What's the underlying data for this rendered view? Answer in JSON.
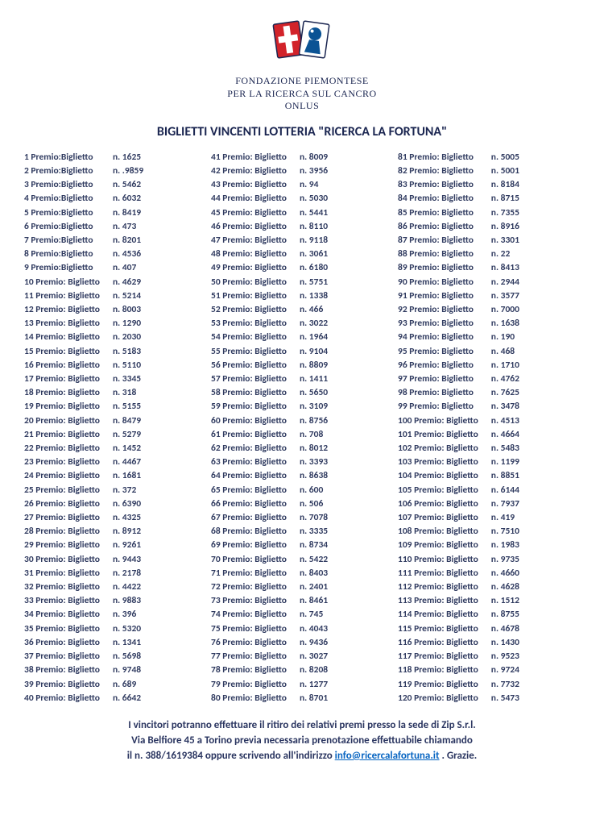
{
  "org": {
    "line1": "FONDAZIONE PIEMONTESE",
    "line2": "PER LA RICERCA SUL CANCRO",
    "line3": "ONLUS"
  },
  "title": "BIGLIETTI VINCENTI LOTTERIA \"RICERCA LA FORTUNA\"",
  "label_word_1": "Premio:",
  "label_word_2": "Biglietto",
  "num_prefix": "n.",
  "colors": {
    "text": "#303b60",
    "org_text": "#1a2550",
    "link": "#0563c1",
    "logo_red": "#d2232a",
    "logo_blue": "#0b5394",
    "logo_white": "#ffffff"
  },
  "footer": {
    "line1": "I vincitori potranno effettuare il ritiro dei relativi premi presso la sede di Zip S.r.l.",
    "line2": "Via Belfiore 45 a Torino previa necessaria prenotazione effettuabile chiamando",
    "line3_a": "il n. 388/1619384 oppure scrivendo all'indirizzo ",
    "line3_link": "info@ricercalafortuna.it",
    "line3_b": " .   Grazie."
  },
  "prizes": [
    {
      "p": 1,
      "n": "1625"
    },
    {
      "p": 2,
      "n": ".9859"
    },
    {
      "p": 3,
      "n": "5462"
    },
    {
      "p": 4,
      "n": "6032"
    },
    {
      "p": 5,
      "n": "8419"
    },
    {
      "p": 6,
      "n": "473"
    },
    {
      "p": 7,
      "n": "8201"
    },
    {
      "p": 8,
      "n": "4536"
    },
    {
      "p": 9,
      "n": "407"
    },
    {
      "p": 10,
      "n": "4629"
    },
    {
      "p": 11,
      "n": "5214"
    },
    {
      "p": 12,
      "n": "8003"
    },
    {
      "p": 13,
      "n": "1290"
    },
    {
      "p": 14,
      "n": "2030"
    },
    {
      "p": 15,
      "n": "5183"
    },
    {
      "p": 16,
      "n": "5110"
    },
    {
      "p": 17,
      "n": "3345"
    },
    {
      "p": 18,
      "n": "318"
    },
    {
      "p": 19,
      "n": "5155"
    },
    {
      "p": 20,
      "n": "8479"
    },
    {
      "p": 21,
      "n": "5279"
    },
    {
      "p": 22,
      "n": "1452"
    },
    {
      "p": 23,
      "n": "4467"
    },
    {
      "p": 24,
      "n": "1681"
    },
    {
      "p": 25,
      "n": "372"
    },
    {
      "p": 26,
      "n": "6390"
    },
    {
      "p": 27,
      "n": "4325"
    },
    {
      "p": 28,
      "n": "8912"
    },
    {
      "p": 29,
      "n": "9261"
    },
    {
      "p": 30,
      "n": "9443"
    },
    {
      "p": 31,
      "n": "2178"
    },
    {
      "p": 32,
      "n": "4422"
    },
    {
      "p": 33,
      "n": "9883"
    },
    {
      "p": 34,
      "n": "396"
    },
    {
      "p": 35,
      "n": "5320"
    },
    {
      "p": 36,
      "n": "1341"
    },
    {
      "p": 37,
      "n": "5698"
    },
    {
      "p": 38,
      "n": "9748"
    },
    {
      "p": 39,
      "n": "689"
    },
    {
      "p": 40,
      "n": "6642"
    },
    {
      "p": 41,
      "n": "8009"
    },
    {
      "p": 42,
      "n": "3956"
    },
    {
      "p": 43,
      "n": "94"
    },
    {
      "p": 44,
      "n": "5030"
    },
    {
      "p": 45,
      "n": "5441"
    },
    {
      "p": 46,
      "n": "8110"
    },
    {
      "p": 47,
      "n": "9118"
    },
    {
      "p": 48,
      "n": "3061"
    },
    {
      "p": 49,
      "n": "6180"
    },
    {
      "p": 50,
      "n": "5751"
    },
    {
      "p": 51,
      "n": "1338"
    },
    {
      "p": 52,
      "n": "466"
    },
    {
      "p": 53,
      "n": "3022"
    },
    {
      "p": 54,
      "n": "1964"
    },
    {
      "p": 55,
      "n": "9104"
    },
    {
      "p": 56,
      "n": "8809"
    },
    {
      "p": 57,
      "n": "1411"
    },
    {
      "p": 58,
      "n": "5650"
    },
    {
      "p": 59,
      "n": "3109"
    },
    {
      "p": 60,
      "n": "8756"
    },
    {
      "p": 61,
      "n": "708"
    },
    {
      "p": 62,
      "n": "8012"
    },
    {
      "p": 63,
      "n": "3393"
    },
    {
      "p": 64,
      "n": "8638"
    },
    {
      "p": 65,
      "n": "600"
    },
    {
      "p": 66,
      "n": "506"
    },
    {
      "p": 67,
      "n": "7078"
    },
    {
      "p": 68,
      "n": "3335"
    },
    {
      "p": 69,
      "n": "8734"
    },
    {
      "p": 70,
      "n": "5422"
    },
    {
      "p": 71,
      "n": "8403"
    },
    {
      "p": 72,
      "n": "2401"
    },
    {
      "p": 73,
      "n": "8461"
    },
    {
      "p": 74,
      "n": "745"
    },
    {
      "p": 75,
      "n": "4043"
    },
    {
      "p": 76,
      "n": "9436"
    },
    {
      "p": 77,
      "n": "3027"
    },
    {
      "p": 78,
      "n": "8208"
    },
    {
      "p": 79,
      "n": "1277"
    },
    {
      "p": 80,
      "n": "8701"
    },
    {
      "p": 81,
      "n": "5005"
    },
    {
      "p": 82,
      "n": "5001"
    },
    {
      "p": 83,
      "n": "8184"
    },
    {
      "p": 84,
      "n": "8715"
    },
    {
      "p": 85,
      "n": "7355"
    },
    {
      "p": 86,
      "n": "8916"
    },
    {
      "p": 87,
      "n": "3301"
    },
    {
      "p": 88,
      "n": "22"
    },
    {
      "p": 89,
      "n": "8413"
    },
    {
      "p": 90,
      "n": "2944"
    },
    {
      "p": 91,
      "n": "3577"
    },
    {
      "p": 92,
      "n": "7000"
    },
    {
      "p": 93,
      "n": "1638"
    },
    {
      "p": 94,
      "n": "190"
    },
    {
      "p": 95,
      "n": "468"
    },
    {
      "p": 96,
      "n": "1710"
    },
    {
      "p": 97,
      "n": "4762"
    },
    {
      "p": 98,
      "n": "7625"
    },
    {
      "p": 99,
      "n": "3478"
    },
    {
      "p": 100,
      "n": "4513"
    },
    {
      "p": 101,
      "n": "4664"
    },
    {
      "p": 102,
      "n": "5483"
    },
    {
      "p": 103,
      "n": "1199"
    },
    {
      "p": 104,
      "n": "8851"
    },
    {
      "p": 105,
      "n": "6144"
    },
    {
      "p": 106,
      "n": "7937"
    },
    {
      "p": 107,
      "n": "419"
    },
    {
      "p": 108,
      "n": "7510"
    },
    {
      "p": 109,
      "n": "1983"
    },
    {
      "p": 110,
      "n": "9735"
    },
    {
      "p": 111,
      "n": "4660"
    },
    {
      "p": 112,
      "n": "4628"
    },
    {
      "p": 113,
      "n": "1512"
    },
    {
      "p": 114,
      "n": "8755"
    },
    {
      "p": 115,
      "n": "4678"
    },
    {
      "p": 116,
      "n": "1430"
    },
    {
      "p": 117,
      "n": "9523"
    },
    {
      "p": 118,
      "n": "9724"
    },
    {
      "p": 119,
      "n": "7732"
    },
    {
      "p": 120,
      "n": "5473"
    }
  ]
}
